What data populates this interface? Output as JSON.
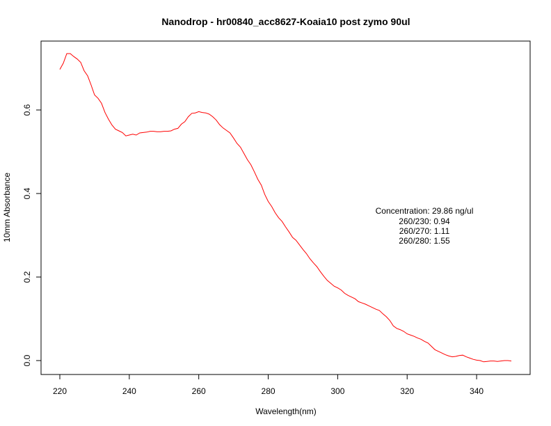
{
  "chart_data": {
    "type": "line",
    "title": "Nanodrop - hr00840_acc8627-Koaia10 post zymo 90ul",
    "xlabel": "Wavelength(nm)",
    "ylabel": "10mm Absorbance",
    "xlim": [
      220,
      350
    ],
    "ylim": [
      0,
      0.74
    ],
    "x_ticks": [
      220,
      240,
      260,
      280,
      300,
      320,
      340
    ],
    "x_tick_labels": [
      "220",
      "240",
      "260",
      "280",
      "300",
      "320",
      "340"
    ],
    "y_ticks": [
      0,
      0.2,
      0.4,
      0.6
    ],
    "y_tick_labels": [
      "0.0",
      "0.2",
      "0.4",
      "0.6"
    ],
    "grid": false,
    "series": [
      {
        "color": "#ff0000",
        "x": [
          220,
          221,
          222,
          223,
          224,
          225,
          226,
          227,
          228,
          229,
          230,
          231,
          232,
          233,
          234,
          235,
          236,
          237,
          238,
          239,
          240,
          241,
          242,
          243,
          244,
          245,
          246,
          247,
          248,
          249,
          250,
          251,
          252,
          253,
          254,
          255,
          256,
          257,
          258,
          259,
          260,
          261,
          262,
          263,
          264,
          265,
          266,
          267,
          268,
          269,
          270,
          271,
          272,
          273,
          274,
          275,
          276,
          277,
          278,
          279,
          280,
          281,
          282,
          283,
          284,
          285,
          286,
          287,
          288,
          289,
          290,
          291,
          292,
          293,
          294,
          295,
          296,
          297,
          298,
          299,
          300,
          301,
          302,
          303,
          304,
          305,
          306,
          307,
          308,
          309,
          310,
          311,
          312,
          313,
          314,
          315,
          316,
          317,
          318,
          319,
          320,
          321,
          322,
          323,
          324,
          325,
          326,
          327,
          328,
          329,
          330,
          331,
          332,
          333,
          334,
          335,
          336,
          337,
          338,
          339,
          340,
          341,
          342,
          343,
          344,
          345,
          346,
          347,
          348,
          349,
          350
        ],
        "y": [
          0.697,
          0.712,
          0.735,
          0.735,
          0.728,
          0.722,
          0.714,
          0.694,
          0.682,
          0.66,
          0.636,
          0.628,
          0.616,
          0.594,
          0.578,
          0.564,
          0.554,
          0.55,
          0.546,
          0.538,
          0.54,
          0.542,
          0.54,
          0.545,
          0.546,
          0.547,
          0.549,
          0.549,
          0.548,
          0.548,
          0.549,
          0.549,
          0.55,
          0.554,
          0.556,
          0.566,
          0.572,
          0.584,
          0.592,
          0.593,
          0.596,
          0.594,
          0.593,
          0.59,
          0.584,
          0.576,
          0.565,
          0.557,
          0.551,
          0.545,
          0.533,
          0.52,
          0.511,
          0.496,
          0.481,
          0.469,
          0.452,
          0.434,
          0.42,
          0.398,
          0.381,
          0.369,
          0.354,
          0.342,
          0.333,
          0.32,
          0.308,
          0.295,
          0.288,
          0.277,
          0.266,
          0.256,
          0.244,
          0.234,
          0.225,
          0.213,
          0.202,
          0.192,
          0.185,
          0.178,
          0.174,
          0.169,
          0.161,
          0.156,
          0.152,
          0.148,
          0.141,
          0.138,
          0.135,
          0.131,
          0.127,
          0.123,
          0.12,
          0.112,
          0.105,
          0.096,
          0.083,
          0.077,
          0.074,
          0.07,
          0.064,
          0.061,
          0.058,
          0.054,
          0.051,
          0.046,
          0.042,
          0.034,
          0.026,
          0.022,
          0.018,
          0.014,
          0.011,
          0.009,
          0.01,
          0.012,
          0.013,
          0.009,
          0.006,
          0.003,
          0.001,
          0.0,
          -0.003,
          -0.002,
          -0.001,
          -0.001,
          -0.002,
          -0.001,
          0.0,
          0.0,
          -0.001
        ]
      }
    ],
    "annotation": {
      "concentration": "Concentration: 29.86 ng/ul",
      "r260_230": "260/230: 0.94",
      "r260_270": "260/270: 1.11",
      "r260_280": "260/280: 1.55"
    }
  }
}
